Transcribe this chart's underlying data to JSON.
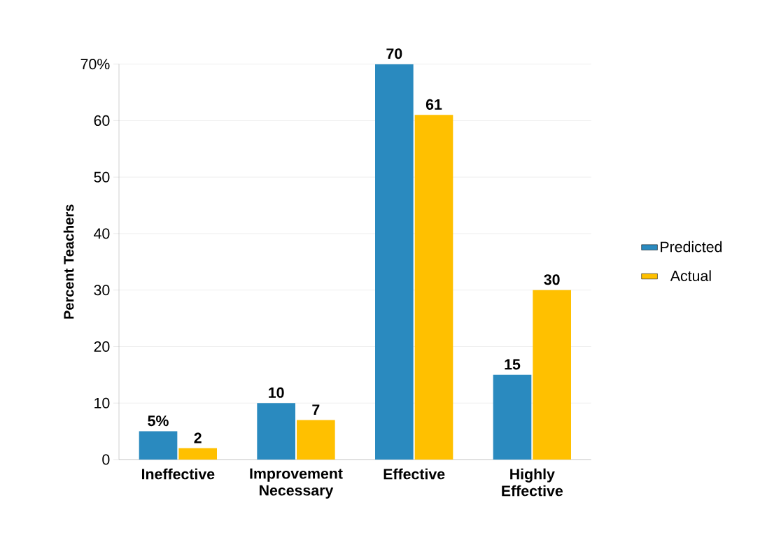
{
  "chart_data": {
    "type": "bar",
    "ylabel": "Percent Teachers",
    "categories": [
      "Ineffective",
      "Improvement Necessary",
      "Effective",
      "Highly Effective"
    ],
    "series": [
      {
        "name": "Predicted",
        "color": "#2a8abf",
        "values": [
          5,
          10,
          70,
          15
        ],
        "value_labels": [
          "5%",
          "10",
          "70",
          "15"
        ]
      },
      {
        "name": "Actual",
        "color": "#ffc000",
        "values": [
          2,
          7,
          61,
          30
        ],
        "value_labels": [
          "2",
          "7",
          "61",
          "30"
        ]
      }
    ],
    "ylim": [
      0,
      70
    ],
    "yticks": [
      0,
      10,
      20,
      30,
      40,
      50,
      {
        "value": 70,
        "label": "70%"
      },
      60
    ],
    "grid": "y",
    "legend": "right"
  }
}
